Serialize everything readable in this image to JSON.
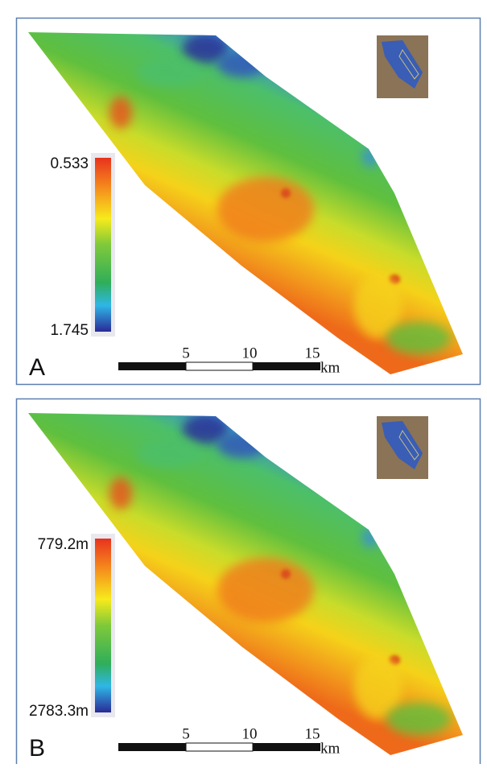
{
  "panels": [
    {
      "label": "A",
      "legend": {
        "top_label": "0.533",
        "bottom_label": "1.745"
      },
      "scale_bar": {
        "ticks": [
          "5",
          "10",
          "15"
        ],
        "unit": "km"
      }
    },
    {
      "label": "B",
      "legend": {
        "top_label": "779.2m",
        "bottom_label": "2783.3m"
      },
      "scale_bar": {
        "ticks": [
          "5",
          "10",
          "15"
        ],
        "unit": "km"
      }
    }
  ]
}
